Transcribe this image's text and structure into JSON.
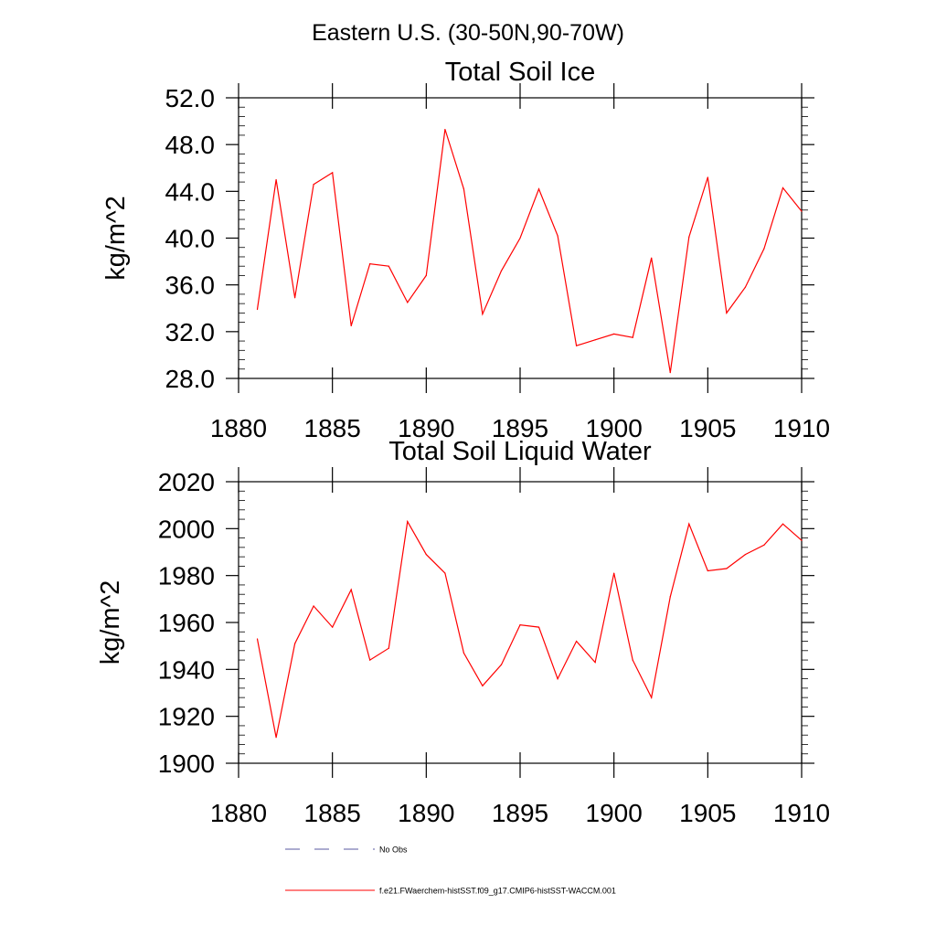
{
  "figure": {
    "title": "Eastern U.S. (30-50N,90-70W)"
  },
  "chart_data": [
    {
      "type": "line",
      "title": "Total Soil Ice",
      "xlabel": "",
      "ylabel": "kg/m^2",
      "xlim": [
        1880,
        1910
      ],
      "ylim": [
        28,
        52
      ],
      "xticks": [
        1880,
        1885,
        1890,
        1895,
        1900,
        1905,
        1910
      ],
      "yticks": [
        "28.0",
        "32.0",
        "36.0",
        "40.0",
        "44.0",
        "48.0",
        "52.0"
      ],
      "grid": false,
      "series": [
        {
          "name": "f.e21.FWaerchem-histSST.f09_g17.CMIP6-histSST-WACCM.001",
          "color": "#ff0000",
          "x": [
            1881,
            1882,
            1883,
            1884,
            1885,
            1886,
            1887,
            1888,
            1889,
            1890,
            1891,
            1892,
            1893,
            1894,
            1895,
            1896,
            1897,
            1898,
            1899,
            1900,
            1901,
            1902,
            1903,
            1904,
            1905,
            1906,
            1907,
            1908,
            1909,
            1910
          ],
          "values": [
            33.9,
            45.0,
            34.9,
            44.6,
            45.6,
            32.5,
            37.8,
            37.6,
            34.5,
            36.8,
            49.3,
            44.2,
            33.5,
            37.2,
            40.0,
            44.2,
            40.2,
            30.8,
            31.3,
            31.8,
            31.5,
            38.3,
            28.5,
            40.1,
            45.2,
            33.6,
            35.8,
            39.1,
            44.3,
            42.3
          ]
        }
      ]
    },
    {
      "type": "line",
      "title": "Total Soil Liquid Water",
      "xlabel": "",
      "ylabel": "kg/m^2",
      "xlim": [
        1880,
        1910
      ],
      "ylim": [
        1900,
        2020
      ],
      "xticks": [
        1880,
        1885,
        1890,
        1895,
        1900,
        1905,
        1910
      ],
      "yticks": [
        "1900",
        "1920",
        "1940",
        "1960",
        "1980",
        "2000",
        "2020"
      ],
      "grid": false,
      "series": [
        {
          "name": "f.e21.FWaerchem-histSST.f09_g17.CMIP6-histSST-WACCM.001",
          "color": "#ff0000",
          "x": [
            1881,
            1882,
            1883,
            1884,
            1885,
            1886,
            1887,
            1888,
            1889,
            1890,
            1891,
            1892,
            1893,
            1894,
            1895,
            1896,
            1897,
            1898,
            1899,
            1900,
            1901,
            1902,
            1903,
            1904,
            1905,
            1906,
            1907,
            1908,
            1909,
            1910
          ],
          "values": [
            1953,
            1911,
            1951,
            1967,
            1958,
            1974,
            1944,
            1949,
            2003,
            1989,
            1981,
            1947,
            1933,
            1942,
            1959,
            1958,
            1936,
            1952,
            1943,
            1981,
            1944,
            1928,
            1971,
            2002,
            1982,
            1983,
            1989,
            1993,
            2002,
            1995
          ]
        }
      ]
    }
  ],
  "legend": {
    "items": [
      {
        "label": "No Obs",
        "color": "#5a5aa0",
        "style": "dashed"
      },
      {
        "label": "f.e21.FWaerchem-histSST.f09_g17.CMIP6-histSST-WACCM.001",
        "color": "#ff0000",
        "style": "solid"
      }
    ]
  }
}
